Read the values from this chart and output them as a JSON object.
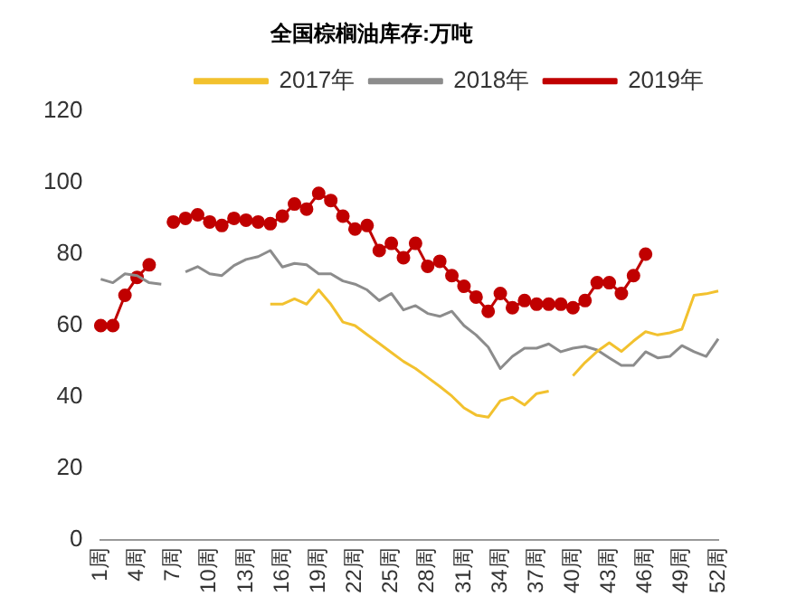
{
  "chart_data": {
    "type": "line",
    "title": "全国棕榈油库存:万吨",
    "categories": [
      "1周",
      null,
      null,
      "4周",
      null,
      null,
      "7周",
      null,
      null,
      "10周",
      null,
      null,
      "13周",
      null,
      null,
      "16周",
      null,
      null,
      "19周",
      null,
      null,
      "22周",
      null,
      null,
      "25周",
      null,
      null,
      "28周",
      null,
      null,
      "31周",
      null,
      null,
      "34周",
      null,
      null,
      "37周",
      null,
      null,
      "40周",
      null,
      null,
      "43周",
      null,
      null,
      "46周",
      null,
      null,
      "49周",
      null,
      null,
      "52周"
    ],
    "series": [
      {
        "name": "2017年",
        "color": "#f2c12e",
        "marker": "none",
        "values": [
          null,
          null,
          null,
          null,
          null,
          null,
          null,
          null,
          null,
          null,
          null,
          null,
          null,
          null,
          66,
          66,
          67.5,
          66,
          70,
          66,
          61,
          60,
          57.5,
          55,
          52.5,
          50,
          48,
          45.5,
          43,
          40.3,
          37,
          35,
          34.4,
          39,
          40,
          37.8,
          41,
          41.7,
          null,
          46,
          49.7,
          52.8,
          55.2,
          52.8,
          55.7,
          58.3,
          57.4,
          58,
          59,
          68.5,
          68.9,
          69.7
        ]
      },
      {
        "name": "2018年",
        "color": "#8c8c8c",
        "marker": "none",
        "values": [
          73,
          72,
          74.5,
          74,
          72,
          71.6,
          null,
          75,
          76.5,
          74.5,
          74,
          76.8,
          78.5,
          79.3,
          81,
          76.4,
          77.4,
          77,
          74.5,
          74.5,
          72.5,
          71.6,
          70,
          67,
          69,
          64.4,
          65.6,
          63.4,
          62.6,
          64,
          60,
          57.4,
          54,
          48,
          51.4,
          53.7,
          53.7,
          54.9,
          52.7,
          53.7,
          54.2,
          53.2,
          51,
          48.9,
          48.9,
          52.7,
          51,
          51.4,
          54.4,
          52.7,
          51.4,
          56.3
        ]
      },
      {
        "name": "2019年",
        "color": "#c00000",
        "marker": "circle",
        "values": [
          60,
          60,
          68.5,
          73.5,
          77,
          null,
          89,
          90,
          91,
          89,
          88,
          90,
          89.5,
          89,
          88.5,
          90.6,
          94,
          92.6,
          97,
          95,
          90.6,
          87,
          88,
          81,
          83,
          79,
          83,
          76.6,
          78,
          74,
          71,
          68,
          64,
          69,
          65,
          67,
          66,
          66,
          66,
          65,
          67,
          72,
          72,
          69,
          74,
          80,
          null,
          null,
          null,
          null,
          null,
          null
        ]
      }
    ],
    "ylim": [
      0,
      120
    ],
    "yticks": [
      0,
      20,
      40,
      60,
      80,
      100,
      120
    ],
    "grid": false,
    "legend": "top"
  }
}
